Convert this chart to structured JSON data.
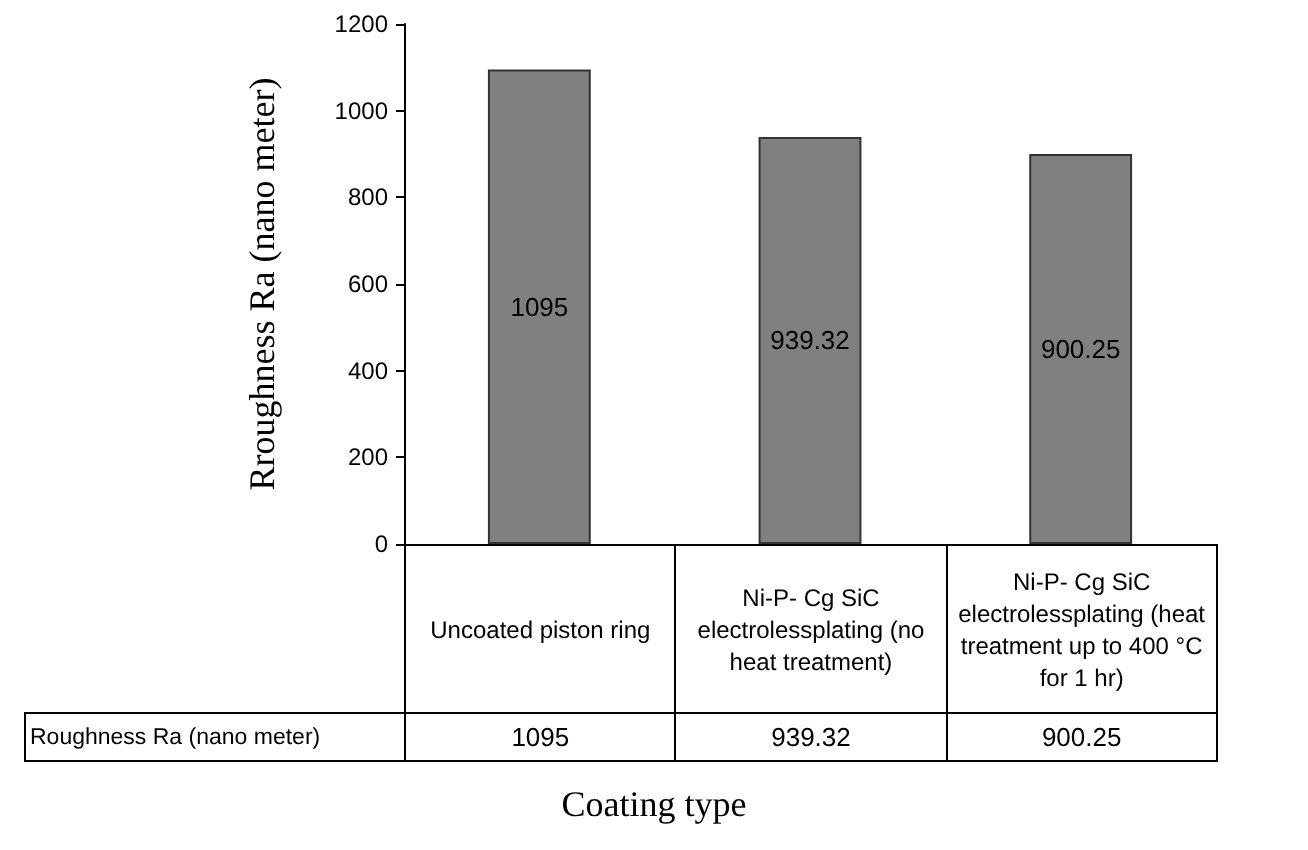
{
  "chart_data": {
    "type": "bar",
    "ylabel": "Rroughness Ra (nano meter)",
    "xlabel": "Coating type",
    "categories": [
      "Uncoated piston ring",
      "Ni-P- Cg SiC electrolessplating (no heat treatment)",
      "Ni-P- Cg SiC electrolessplating (heat treatment up to 400 °C for 1 hr)"
    ],
    "series": [
      {
        "name": "Roughness Ra  (nano meter)",
        "color": "#808080",
        "values": [
          1095,
          939.32,
          900.25
        ],
        "value_labels": [
          "1095",
          "939.32",
          "900.25"
        ]
      }
    ],
    "ylim": [
      0,
      1200
    ],
    "yticks": [
      0,
      200,
      400,
      600,
      800,
      1000,
      1200
    ],
    "grid": false,
    "legend": false,
    "annotations": [
      "1095",
      "939.32",
      "900.25"
    ]
  }
}
